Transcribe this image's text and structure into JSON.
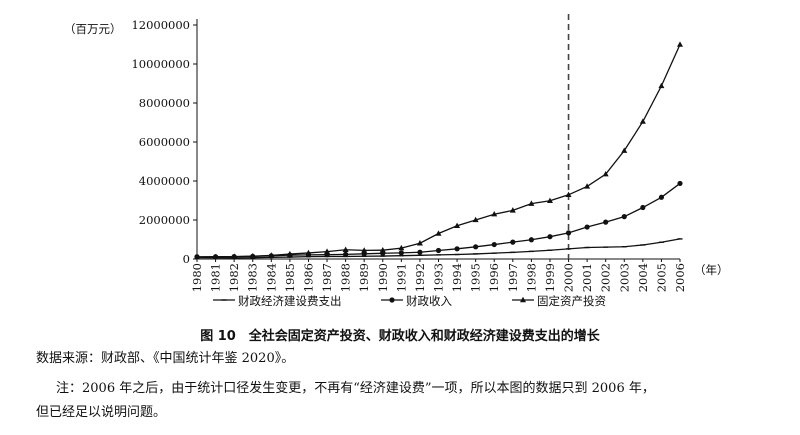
{
  "chart_data": {
    "type": "line",
    "title": "",
    "ylabel": "（百万元）",
    "xlabel": "（年）",
    "ylim": [
      0,
      12000000
    ],
    "yticks": [
      0,
      2000000,
      4000000,
      6000000,
      8000000,
      10000000,
      12000000
    ],
    "ytick_labels": [
      "0",
      "2000000",
      "4000000",
      "6000000",
      "8000000",
      "10000000",
      "12000000"
    ],
    "categories": [
      "1980",
      "1981",
      "1982",
      "1983",
      "1984",
      "1985",
      "1986",
      "1987",
      "1988",
      "1989",
      "1990",
      "1991",
      "1992",
      "1993",
      "1994",
      "1995",
      "1996",
      "1997",
      "1998",
      "1999",
      "2000",
      "2001",
      "2002",
      "2003",
      "2004",
      "2005",
      "2006"
    ],
    "series": [
      {
        "name": "财政经济建设费支出",
        "marker": "dash",
        "values": [
          72000,
          63000,
          58000,
          66000,
          83000,
          100000,
          120000,
          130000,
          132000,
          140000,
          150000,
          170000,
          190000,
          210000,
          230000,
          260000,
          300000,
          340000,
          390000,
          450000,
          520000,
          590000,
          610000,
          630000,
          720000,
          860000,
          1030000
        ]
      },
      {
        "name": "财政收入",
        "marker": "circle",
        "values": [
          116000,
          118000,
          121000,
          137000,
          164000,
          200000,
          212000,
          220000,
          236000,
          266000,
          294000,
          315000,
          348000,
          435000,
          522000,
          624000,
          741000,
          865000,
          988000,
          1144000,
          1340000,
          1639000,
          1890000,
          2172000,
          2640000,
          3165000,
          3876000
        ]
      },
      {
        "name": "固定资产投资",
        "marker": "triangle",
        "values": [
          91000,
          96000,
          123000,
          143000,
          183000,
          254000,
          312000,
          379000,
          475000,
          441000,
          452000,
          559000,
          808000,
          1307000,
          1704000,
          2002000,
          2297000,
          2494000,
          2840000,
          2985000,
          3292000,
          3721000,
          4350000,
          5557000,
          7048000,
          8877000,
          10999000
        ]
      }
    ],
    "vline_at": "2000",
    "legend_position": "bottom",
    "grid": false
  },
  "caption": "图 10　全社会固定资产投资、财政收入和财政经济建设费支出的增长",
  "source": "数据来源：财政部、《中国统计年鉴 2020》。",
  "note_line1": "注：2006 年之后，由于统计口径发生变更，不再有“经济建设费”一项，所以本图的数据只到 2006 年，",
  "note_line2": "但已经足以说明问题。"
}
